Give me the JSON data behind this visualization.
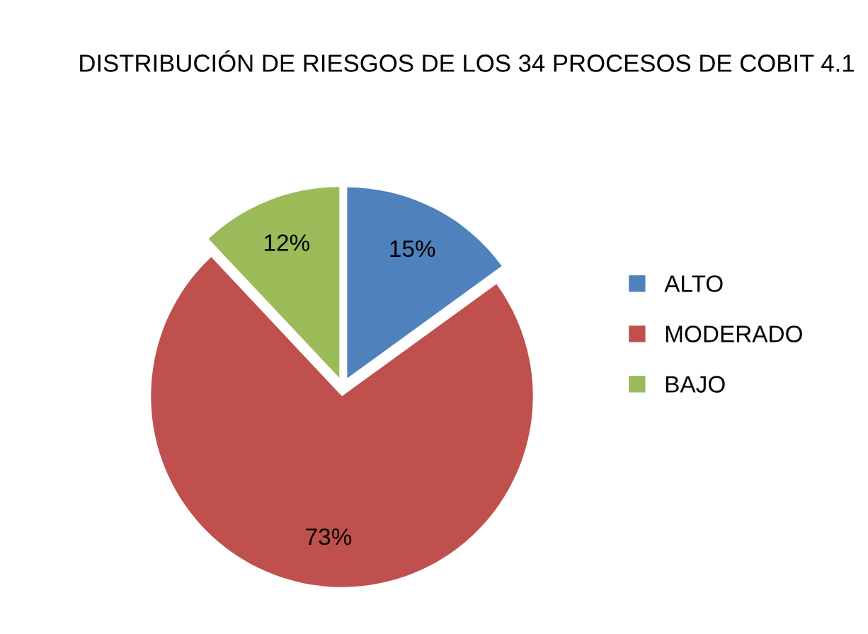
{
  "chart_data": {
    "type": "pie",
    "title": "DISTRIBUCIÓN DE RIESGOS DE LOS 34 PROCESOS DE COBIT 4.1",
    "categories": [
      "ALTO",
      "MODERADO",
      "BAJO"
    ],
    "values": [
      15,
      73,
      12
    ],
    "colors": [
      "#4f81bd",
      "#c0504d",
      "#9bbb59"
    ],
    "value_labels": [
      "15%",
      "73%",
      "12%"
    ],
    "legend": "right"
  }
}
